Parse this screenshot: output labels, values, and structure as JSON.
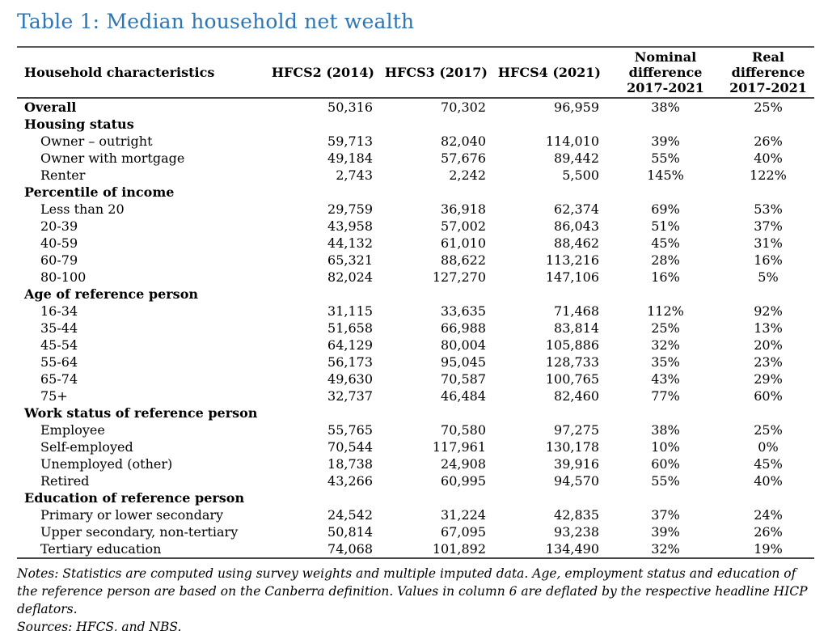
{
  "title": "Table 1: Median household net wealth",
  "colors": {
    "title_blue": "#2E75B6",
    "rule_gray": "#4d4d4d"
  },
  "table": {
    "headers": [
      "Household characteristics",
      "HFCS2 (2014)",
      "HFCS3 (2017)",
      "HFCS4 (2021)",
      "Nominal\ndifference\n2017-2021",
      "Real\ndifference\n2017-2021"
    ],
    "rows": [
      {
        "label": "Overall",
        "bold": true,
        "indent": false,
        "values": [
          "50,316",
          "70,302",
          "96,959",
          "38%",
          "25%"
        ]
      },
      {
        "label": "Housing status",
        "bold": true,
        "indent": false,
        "values": []
      },
      {
        "label": "Owner – outright",
        "bold": false,
        "indent": true,
        "values": [
          "59,713",
          "82,040",
          "114,010",
          "39%",
          "26%"
        ]
      },
      {
        "label": "Owner with mortgage",
        "bold": false,
        "indent": true,
        "values": [
          "49,184",
          "57,676",
          "89,442",
          "55%",
          "40%"
        ]
      },
      {
        "label": "Renter",
        "bold": false,
        "indent": true,
        "values": [
          "2,743",
          "2,242",
          "5,500",
          "145%",
          "122%"
        ]
      },
      {
        "label": "Percentile of income",
        "bold": true,
        "indent": false,
        "values": []
      },
      {
        "label": "Less than 20",
        "bold": false,
        "indent": true,
        "values": [
          "29,759",
          "36,918",
          "62,374",
          "69%",
          "53%"
        ]
      },
      {
        "label": "20-39",
        "bold": false,
        "indent": true,
        "values": [
          "43,958",
          "57,002",
          "86,043",
          "51%",
          "37%"
        ]
      },
      {
        "label": "40-59",
        "bold": false,
        "indent": true,
        "values": [
          "44,132",
          "61,010",
          "88,462",
          "45%",
          "31%"
        ]
      },
      {
        "label": "60-79",
        "bold": false,
        "indent": true,
        "values": [
          "65,321",
          "88,622",
          "113,216",
          "28%",
          "16%"
        ]
      },
      {
        "label": "80-100",
        "bold": false,
        "indent": true,
        "values": [
          "82,024",
          "127,270",
          "147,106",
          "16%",
          "5%"
        ]
      },
      {
        "label": "Age of reference person",
        "bold": true,
        "indent": false,
        "values": []
      },
      {
        "label": "16-34",
        "bold": false,
        "indent": true,
        "values": [
          "31,115",
          "33,635",
          "71,468",
          "112%",
          "92%"
        ]
      },
      {
        "label": "35-44",
        "bold": false,
        "indent": true,
        "values": [
          "51,658",
          "66,988",
          "83,814",
          "25%",
          "13%"
        ]
      },
      {
        "label": "45-54",
        "bold": false,
        "indent": true,
        "values": [
          "64,129",
          "80,004",
          "105,886",
          "32%",
          "20%"
        ]
      },
      {
        "label": "55-64",
        "bold": false,
        "indent": true,
        "values": [
          "56,173",
          "95,045",
          "128,733",
          "35%",
          "23%"
        ]
      },
      {
        "label": "65-74",
        "bold": false,
        "indent": true,
        "values": [
          "49,630",
          "70,587",
          "100,765",
          "43%",
          "29%"
        ]
      },
      {
        "label": "75+",
        "bold": false,
        "indent": true,
        "values": [
          "32,737",
          "46,484",
          "82,460",
          "77%",
          "60%"
        ]
      },
      {
        "label": "Work status of reference person",
        "bold": true,
        "indent": false,
        "values": []
      },
      {
        "label": "Employee",
        "bold": false,
        "indent": true,
        "values": [
          "55,765",
          "70,580",
          "97,275",
          "38%",
          "25%"
        ]
      },
      {
        "label": "Self-employed",
        "bold": false,
        "indent": true,
        "values": [
          "70,544",
          "117,961",
          "130,178",
          "10%",
          "0%"
        ]
      },
      {
        "label": "Unemployed (other)",
        "bold": false,
        "indent": true,
        "values": [
          "18,738",
          "24,908",
          "39,916",
          "60%",
          "45%"
        ]
      },
      {
        "label": "Retired",
        "bold": false,
        "indent": true,
        "values": [
          "43,266",
          "60,995",
          "94,570",
          "55%",
          "40%"
        ]
      },
      {
        "label": "Education of reference person",
        "bold": true,
        "indent": false,
        "values": []
      },
      {
        "label": "Primary or lower secondary",
        "bold": false,
        "indent": true,
        "values": [
          "24,542",
          "31,224",
          "42,835",
          "37%",
          "24%"
        ]
      },
      {
        "label": "Upper secondary, non-tertiary",
        "bold": false,
        "indent": true,
        "values": [
          "50,814",
          "67,095",
          "93,238",
          "39%",
          "26%"
        ]
      },
      {
        "label": "Tertiary education",
        "bold": false,
        "indent": true,
        "values": [
          "74,068",
          "101,892",
          "134,490",
          "32%",
          "19%"
        ]
      }
    ]
  },
  "notes": {
    "text": "Notes: Statistics are computed using survey weights and multiple imputed data. Age, employment status and education of the reference person are based on the Canberra definition. Values in column 6 are deflated by the respective headline HICP deflators.",
    "sources": "Sources: HFCS, and NBS."
  }
}
